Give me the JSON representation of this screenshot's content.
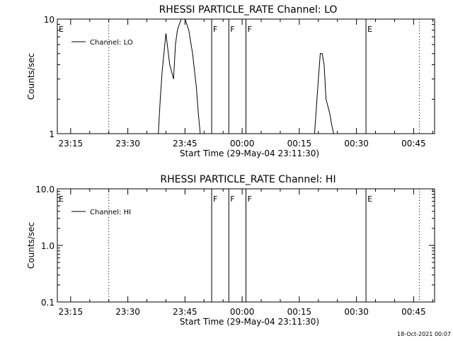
{
  "colors": {
    "background": "#ffffff",
    "foreground": "#000000"
  },
  "footer": {
    "timestamp": "18-Oct-2021 00:07"
  },
  "chart_data": [
    {
      "type": "line",
      "title": "RHESSI PARTICLE_RATE Channel: LO",
      "xlabel": "Start Time (29-May-04 23:11:30)",
      "ylabel": "Counts/sec",
      "y_scale": "log",
      "ylim": [
        1,
        10
      ],
      "xlim": [
        "23:11:30",
        "00:50:30"
      ],
      "x_ticks": [
        "23:15",
        "23:30",
        "23:45",
        "00:00",
        "00:15",
        "00:30",
        "00:45"
      ],
      "y_ticks": [
        "1",
        "10"
      ],
      "legend": {
        "position": "top-left",
        "entries": [
          "Channel: LO"
        ]
      },
      "grid": false,
      "series": [
        {
          "name": "Channel: LO",
          "x": [
            "23:38:00",
            "23:38:30",
            "23:39:00",
            "23:40:00",
            "23:41:00",
            "23:42:00",
            "23:42:30",
            "23:43:00",
            "23:43:30",
            "23:44:00",
            "23:45:00",
            "23:46:00",
            "23:47:00",
            "23:48:00",
            "23:48:30",
            "23:49:00",
            "23:51:00",
            "23:52:00",
            "00:19:00",
            "00:20:00",
            "00:20:30",
            "00:21:00",
            "00:21:30",
            "00:22:00",
            "00:23:00",
            "00:23:30",
            "00:24:00",
            "00:26:00",
            "00:27:00"
          ],
          "y": [
            1,
            2,
            3.5,
            7.5,
            4,
            3,
            6,
            8,
            9,
            10,
            10,
            8,
            5,
            2.5,
            1.5,
            1,
            1,
            1,
            1,
            3,
            5,
            5,
            4,
            2,
            1.5,
            1.2,
            1,
            1,
            1
          ]
        }
      ],
      "markers": [
        {
          "label": "E",
          "time": "23:11:30",
          "line": "none"
        },
        {
          "label": "",
          "time": "23:25:00",
          "line": "dotted"
        },
        {
          "label": "F",
          "time": "23:52:00",
          "line": "solid"
        },
        {
          "label": "F",
          "time": "23:56:30",
          "line": "solid"
        },
        {
          "label": "F",
          "time": "00:01:00",
          "line": "solid"
        },
        {
          "label": "E",
          "time": "00:32:30",
          "line": "solid"
        },
        {
          "label": "",
          "time": "00:46:30",
          "line": "dotted"
        }
      ]
    },
    {
      "type": "line",
      "title": "RHESSI PARTICLE_RATE Channel: HI",
      "xlabel": "Start Time (29-May-04 23:11:30)",
      "ylabel": "Counts/sec",
      "y_scale": "log",
      "ylim": [
        0.1,
        10
      ],
      "xlim": [
        "23:11:30",
        "00:50:30"
      ],
      "x_ticks": [
        "23:15",
        "23:30",
        "23:45",
        "00:00",
        "00:15",
        "00:30",
        "00:45"
      ],
      "y_ticks": [
        "0.1",
        "1.0",
        "10.0"
      ],
      "legend": {
        "position": "top-left",
        "entries": [
          "Channel: HI"
        ]
      },
      "grid": false,
      "series": [
        {
          "name": "Channel: HI",
          "x": [],
          "y": []
        }
      ],
      "markers": [
        {
          "label": "E",
          "time": "23:11:30",
          "line": "none"
        },
        {
          "label": "",
          "time": "23:25:00",
          "line": "dotted"
        },
        {
          "label": "F",
          "time": "23:52:00",
          "line": "solid"
        },
        {
          "label": "F",
          "time": "23:56:30",
          "line": "solid"
        },
        {
          "label": "F",
          "time": "00:01:00",
          "line": "solid"
        },
        {
          "label": "E",
          "time": "00:32:30",
          "line": "solid"
        },
        {
          "label": "",
          "time": "00:46:30",
          "line": "dotted"
        }
      ]
    }
  ]
}
